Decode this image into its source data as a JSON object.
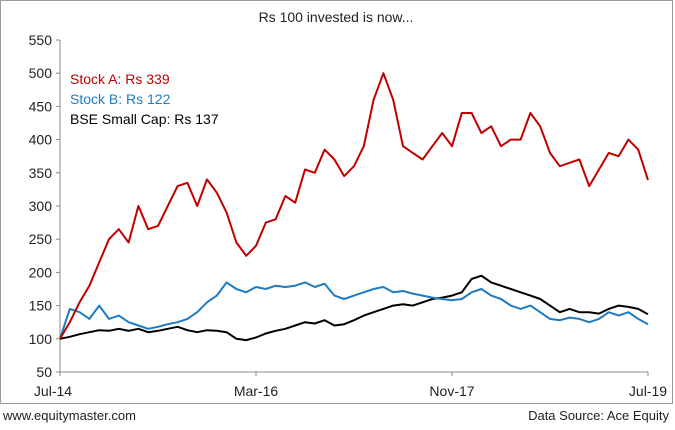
{
  "chart_data": {
    "type": "line",
    "title": "Rs 100 invested is now...",
    "xlabel": "",
    "ylabel": "",
    "ylim": [
      50,
      550
    ],
    "yticks": [
      50,
      100,
      150,
      200,
      250,
      300,
      350,
      400,
      450,
      500,
      550
    ],
    "x_tick_labels": [
      "Jul-14",
      "Mar-16",
      "Nov-17",
      "Jul-19"
    ],
    "grid": false,
    "legend_placement": "top-left",
    "series": [
      {
        "name": "Stock A",
        "legend_label": "Stock A: Rs 339",
        "color": "#c00000",
        "x": [
          "Jul-14",
          "Aug-14",
          "Sep-14",
          "Oct-14",
          "Nov-14",
          "Dec-14",
          "Jan-15",
          "Feb-15",
          "Mar-15",
          "Apr-15",
          "May-15",
          "Jun-15",
          "Jul-15",
          "Aug-15",
          "Sep-15",
          "Oct-15",
          "Nov-15",
          "Dec-15",
          "Jan-16",
          "Feb-16",
          "Mar-16",
          "Apr-16",
          "May-16",
          "Jun-16",
          "Jul-16",
          "Aug-16",
          "Sep-16",
          "Oct-16",
          "Nov-16",
          "Dec-16",
          "Jan-17",
          "Feb-17",
          "Mar-17",
          "Apr-17",
          "May-17",
          "Jun-17",
          "Jul-17",
          "Aug-17",
          "Sep-17",
          "Oct-17",
          "Nov-17",
          "Dec-17",
          "Jan-18",
          "Feb-18",
          "Mar-18",
          "Apr-18",
          "May-18",
          "Jun-18",
          "Jul-18",
          "Aug-18",
          "Sep-18",
          "Oct-18",
          "Nov-18",
          "Dec-18",
          "Jan-19",
          "Feb-19",
          "Mar-19",
          "Apr-19",
          "May-19",
          "Jun-19",
          "Jul-19"
        ],
        "values": [
          100,
          125,
          155,
          180,
          215,
          250,
          265,
          245,
          300,
          265,
          270,
          300,
          330,
          335,
          300,
          340,
          320,
          290,
          245,
          225,
          240,
          275,
          280,
          315,
          305,
          355,
          350,
          385,
          370,
          345,
          360,
          390,
          460,
          500,
          460,
          390,
          380,
          370,
          390,
          410,
          390,
          440,
          440,
          410,
          420,
          390,
          400,
          400,
          440,
          420,
          380,
          360,
          365,
          370,
          330,
          355,
          380,
          375,
          400,
          385,
          339
        ]
      },
      {
        "name": "Stock B",
        "legend_label": "Stock B: Rs 122",
        "color": "#1f7bc1",
        "x": [
          "Jul-14",
          "Aug-14",
          "Sep-14",
          "Oct-14",
          "Nov-14",
          "Dec-14",
          "Jan-15",
          "Feb-15",
          "Mar-15",
          "Apr-15",
          "May-15",
          "Jun-15",
          "Jul-15",
          "Aug-15",
          "Sep-15",
          "Oct-15",
          "Nov-15",
          "Dec-15",
          "Jan-16",
          "Feb-16",
          "Mar-16",
          "Apr-16",
          "May-16",
          "Jun-16",
          "Jul-16",
          "Aug-16",
          "Sep-16",
          "Oct-16",
          "Nov-16",
          "Dec-16",
          "Jan-17",
          "Feb-17",
          "Mar-17",
          "Apr-17",
          "May-17",
          "Jun-17",
          "Jul-17",
          "Aug-17",
          "Sep-17",
          "Oct-17",
          "Nov-17",
          "Dec-17",
          "Jan-18",
          "Feb-18",
          "Mar-18",
          "Apr-18",
          "May-18",
          "Jun-18",
          "Jul-18",
          "Aug-18",
          "Sep-18",
          "Oct-18",
          "Nov-18",
          "Dec-18",
          "Jan-19",
          "Feb-19",
          "Mar-19",
          "Apr-19",
          "May-19",
          "Jun-19",
          "Jul-19"
        ],
        "values": [
          100,
          145,
          140,
          130,
          150,
          130,
          135,
          125,
          120,
          115,
          118,
          122,
          125,
          130,
          140,
          155,
          165,
          185,
          175,
          170,
          178,
          175,
          180,
          178,
          180,
          185,
          178,
          183,
          165,
          160,
          165,
          170,
          175,
          178,
          170,
          172,
          168,
          165,
          162,
          160,
          158,
          160,
          170,
          175,
          165,
          160,
          150,
          145,
          150,
          140,
          130,
          128,
          132,
          130,
          125,
          130,
          140,
          135,
          140,
          130,
          122
        ]
      },
      {
        "name": "BSE Small Cap",
        "legend_label": "BSE Small Cap: Rs 137",
        "color": "#000000",
        "x": [
          "Jul-14",
          "Aug-14",
          "Sep-14",
          "Oct-14",
          "Nov-14",
          "Dec-14",
          "Jan-15",
          "Feb-15",
          "Mar-15",
          "Apr-15",
          "May-15",
          "Jun-15",
          "Jul-15",
          "Aug-15",
          "Sep-15",
          "Oct-15",
          "Nov-15",
          "Dec-15",
          "Jan-16",
          "Feb-16",
          "Mar-16",
          "Apr-16",
          "May-16",
          "Jun-16",
          "Jul-16",
          "Aug-16",
          "Sep-16",
          "Oct-16",
          "Nov-16",
          "Dec-16",
          "Jan-17",
          "Feb-17",
          "Mar-17",
          "Apr-17",
          "May-17",
          "Jun-17",
          "Jul-17",
          "Aug-17",
          "Sep-17",
          "Oct-17",
          "Nov-17",
          "Dec-17",
          "Jan-18",
          "Feb-18",
          "Mar-18",
          "Apr-18",
          "May-18",
          "Jun-18",
          "Jul-18",
          "Aug-18",
          "Sep-18",
          "Oct-18",
          "Nov-18",
          "Dec-18",
          "Jan-19",
          "Feb-19",
          "Mar-19",
          "Apr-19",
          "May-19",
          "Jun-19",
          "Jul-19"
        ],
        "values": [
          100,
          103,
          107,
          110,
          113,
          112,
          115,
          112,
          115,
          110,
          112,
          115,
          118,
          113,
          110,
          113,
          112,
          110,
          100,
          98,
          102,
          108,
          112,
          115,
          120,
          125,
          123,
          128,
          120,
          122,
          128,
          135,
          140,
          145,
          150,
          152,
          150,
          155,
          160,
          162,
          165,
          170,
          190,
          195,
          185,
          180,
          175,
          170,
          165,
          160,
          150,
          140,
          145,
          140,
          140,
          138,
          145,
          150,
          148,
          145,
          137
        ]
      }
    ]
  },
  "footer": {
    "source_site": "www.equitymaster.com",
    "data_source": "Data Source: Ace Equity"
  }
}
